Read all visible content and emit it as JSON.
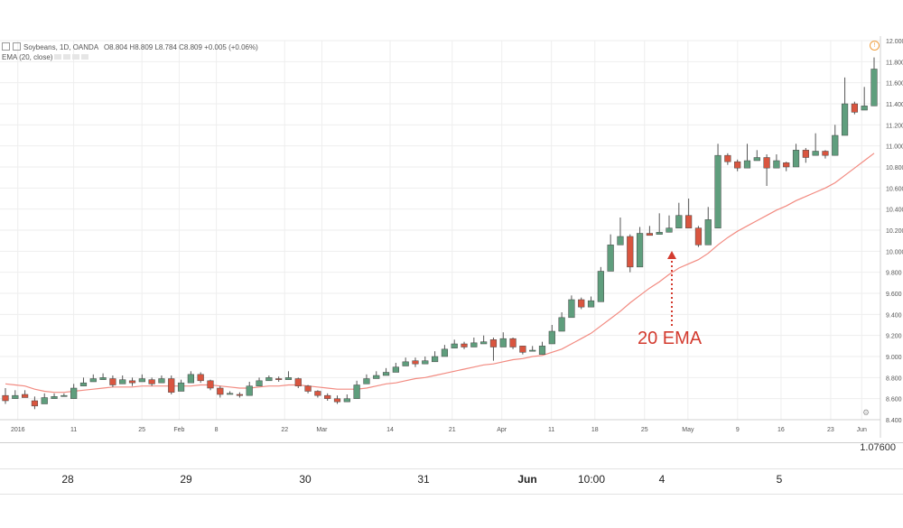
{
  "header": {
    "symbol": "Soybeans, 1D, OANDA",
    "ohlc": "O8.804 H8.809 L8.784 C8.809 +0.005 (+0.06%)",
    "indicator": "EMA (20, close)"
  },
  "annotation": {
    "text": "20 EMA"
  },
  "outer_scale": {
    "price": "1.07600",
    "labels": [
      "28",
      "29",
      "30",
      "31",
      "Jun",
      "10:00",
      "4",
      "5"
    ]
  },
  "colors": {
    "up": "#5f9e7d",
    "down": "#d9553f",
    "ema": "#f28a80",
    "annotation": "#d33b2f",
    "grid": "#eeeeee"
  },
  "chart_data": {
    "type": "candlestick",
    "title": "Soybeans, 1D, OANDA",
    "xlabel": "",
    "ylabel": "",
    "ylim": [
      8.4,
      12.0
    ],
    "grid": true,
    "y_ticks": [
      "12.000",
      "11.800",
      "11.600",
      "11.400",
      "11.200",
      "11.000",
      "10.800",
      "10.600",
      "10.400",
      "10.200",
      "10.000",
      "9.800",
      "9.600",
      "9.400",
      "9.200",
      "9.000",
      "8.800",
      "8.600",
      "8.400"
    ],
    "x_ticks": [
      "2016",
      "11",
      "25",
      "Feb",
      "8",
      "22",
      "Mar",
      "14",
      "21",
      "Apr",
      "11",
      "18",
      "25",
      "May",
      "9",
      "16",
      "23",
      "Jun"
    ],
    "candles": [
      [
        8.63,
        8.7,
        8.58,
        8.55
      ],
      [
        8.6,
        8.66,
        8.63,
        8.68
      ],
      [
        8.64,
        8.68,
        8.61,
        8.62
      ],
      [
        8.58,
        8.62,
        8.53,
        8.5
      ],
      [
        8.55,
        8.63,
        8.61,
        8.65
      ],
      [
        8.6,
        8.64,
        8.62,
        8.65
      ],
      [
        8.62,
        8.64,
        8.63,
        8.65
      ],
      [
        8.6,
        8.72,
        8.7,
        8.74
      ],
      [
        8.72,
        8.78,
        8.75,
        8.8
      ],
      [
        8.76,
        8.81,
        8.79,
        8.83
      ],
      [
        8.78,
        8.82,
        8.8,
        8.84
      ],
      [
        8.79,
        8.82,
        8.73,
        8.71
      ],
      [
        8.74,
        8.8,
        8.78,
        8.82
      ],
      [
        8.77,
        8.8,
        8.75,
        8.72
      ],
      [
        8.76,
        8.81,
        8.79,
        8.83
      ],
      [
        8.78,
        8.8,
        8.74,
        8.72
      ],
      [
        8.75,
        8.8,
        8.79,
        8.82
      ],
      [
        8.79,
        8.82,
        8.66,
        8.64
      ],
      [
        8.67,
        8.76,
        8.75,
        8.78
      ],
      [
        8.75,
        8.84,
        8.83,
        8.86
      ],
      [
        8.83,
        8.85,
        8.77,
        8.75
      ],
      [
        8.77,
        8.78,
        8.7,
        8.68
      ],
      [
        8.7,
        8.72,
        8.64,
        8.61
      ],
      [
        8.64,
        8.66,
        8.65,
        8.67
      ],
      [
        8.64,
        8.66,
        8.63,
        8.61
      ],
      [
        8.63,
        8.74,
        8.72,
        8.76
      ],
      [
        8.72,
        8.78,
        8.77,
        8.8
      ],
      [
        8.77,
        8.81,
        8.8,
        8.82
      ],
      [
        8.79,
        8.81,
        8.78,
        8.76
      ],
      [
        8.78,
        8.84,
        8.8,
        8.86
      ],
      [
        8.79,
        8.8,
        8.72,
        8.7
      ],
      [
        8.72,
        8.73,
        8.67,
        8.65
      ],
      [
        8.67,
        8.68,
        8.63,
        8.61
      ],
      [
        8.63,
        8.65,
        8.6,
        8.58
      ],
      [
        8.6,
        8.63,
        8.57,
        8.55
      ],
      [
        8.57,
        8.62,
        8.6,
        8.64
      ],
      [
        8.6,
        8.74,
        8.73,
        8.77
      ],
      [
        8.74,
        8.8,
        8.79,
        8.83
      ],
      [
        8.79,
        8.84,
        8.82,
        8.86
      ],
      [
        8.82,
        8.87,
        8.85,
        8.89
      ],
      [
        8.85,
        8.92,
        8.9,
        8.94
      ],
      [
        8.91,
        8.97,
        8.95,
        8.99
      ],
      [
        8.96,
        8.99,
        8.93,
        8.9
      ],
      [
        8.93,
        8.97,
        8.96,
        9.0
      ],
      [
        8.95,
        9.02,
        9.0,
        9.05
      ],
      [
        9.0,
        9.09,
        9.07,
        9.11
      ],
      [
        9.08,
        9.14,
        9.12,
        9.16
      ],
      [
        9.12,
        9.14,
        9.09,
        9.07
      ],
      [
        9.09,
        9.15,
        9.13,
        9.18
      ],
      [
        9.12,
        9.17,
        9.14,
        9.2
      ],
      [
        9.16,
        9.18,
        9.09,
        8.96
      ],
      [
        9.09,
        9.2,
        9.17,
        9.23
      ],
      [
        9.17,
        9.18,
        9.09,
        9.07
      ],
      [
        9.1,
        9.1,
        9.04,
        9.02
      ],
      [
        9.05,
        9.08,
        9.06,
        9.1
      ],
      [
        9.02,
        9.12,
        9.1,
        9.14
      ],
      [
        9.12,
        9.26,
        9.24,
        9.3
      ],
      [
        9.24,
        9.39,
        9.37,
        9.42
      ],
      [
        9.37,
        9.56,
        9.54,
        9.58
      ],
      [
        9.54,
        9.56,
        9.47,
        9.45
      ],
      [
        9.47,
        9.55,
        9.53,
        9.57
      ],
      [
        9.52,
        9.83,
        9.81,
        9.85
      ],
      [
        9.81,
        10.08,
        10.06,
        10.16
      ],
      [
        10.06,
        10.18,
        10.14,
        10.32
      ],
      [
        10.14,
        10.16,
        9.85,
        9.8
      ],
      [
        9.85,
        10.2,
        10.17,
        10.23
      ],
      [
        10.17,
        10.2,
        10.15,
        10.24
      ],
      [
        10.16,
        10.2,
        10.18,
        10.36
      ],
      [
        10.18,
        10.25,
        10.22,
        10.34
      ],
      [
        10.22,
        10.36,
        10.34,
        10.46
      ],
      [
        10.34,
        10.36,
        10.22,
        10.5
      ],
      [
        10.22,
        10.24,
        10.06,
        10.04
      ],
      [
        10.06,
        10.32,
        10.3,
        10.42
      ],
      [
        10.22,
        10.93,
        10.91,
        11.02
      ],
      [
        10.91,
        10.93,
        10.85,
        10.82
      ],
      [
        10.85,
        10.87,
        10.79,
        10.76
      ],
      [
        10.79,
        10.88,
        10.86,
        11.02
      ],
      [
        10.86,
        10.93,
        10.89,
        10.96
      ],
      [
        10.89,
        10.92,
        10.79,
        10.62
      ],
      [
        10.79,
        10.89,
        10.86,
        10.92
      ],
      [
        10.84,
        10.85,
        10.8,
        10.76
      ],
      [
        10.8,
        10.98,
        10.96,
        11.02
      ],
      [
        10.96,
        10.98,
        10.89,
        10.84
      ],
      [
        10.91,
        10.97,
        10.95,
        11.12
      ],
      [
        10.95,
        10.96,
        10.91,
        10.88
      ],
      [
        10.91,
        11.12,
        11.1,
        11.2
      ],
      [
        11.1,
        11.42,
        11.4,
        11.65
      ],
      [
        11.4,
        11.42,
        11.32,
        11.3
      ],
      [
        11.34,
        11.4,
        11.38,
        11.56
      ],
      [
        11.38,
        11.68,
        11.73,
        11.84
      ]
    ],
    "ema": [
      8.74,
      8.73,
      8.72,
      8.69,
      8.67,
      8.66,
      8.66,
      8.67,
      8.68,
      8.69,
      8.7,
      8.71,
      8.71,
      8.71,
      8.72,
      8.72,
      8.72,
      8.72,
      8.72,
      8.72,
      8.73,
      8.73,
      8.72,
      8.71,
      8.7,
      8.7,
      8.71,
      8.72,
      8.72,
      8.73,
      8.73,
      8.72,
      8.71,
      8.7,
      8.69,
      8.69,
      8.69,
      8.7,
      8.72,
      8.74,
      8.75,
      8.77,
      8.79,
      8.8,
      8.82,
      8.84,
      8.86,
      8.88,
      8.9,
      8.92,
      8.93,
      8.95,
      8.97,
      8.98,
      9.0,
      9.01,
      9.04,
      9.07,
      9.12,
      9.17,
      9.22,
      9.29,
      9.36,
      9.43,
      9.51,
      9.58,
      9.65,
      9.71,
      9.78,
      9.84,
      9.88,
      9.92,
      9.98,
      10.06,
      10.13,
      10.19,
      10.24,
      10.29,
      10.34,
      10.39,
      10.43,
      10.48,
      10.52,
      10.56,
      10.6,
      10.65,
      10.72,
      10.79,
      10.86,
      10.93
    ]
  }
}
